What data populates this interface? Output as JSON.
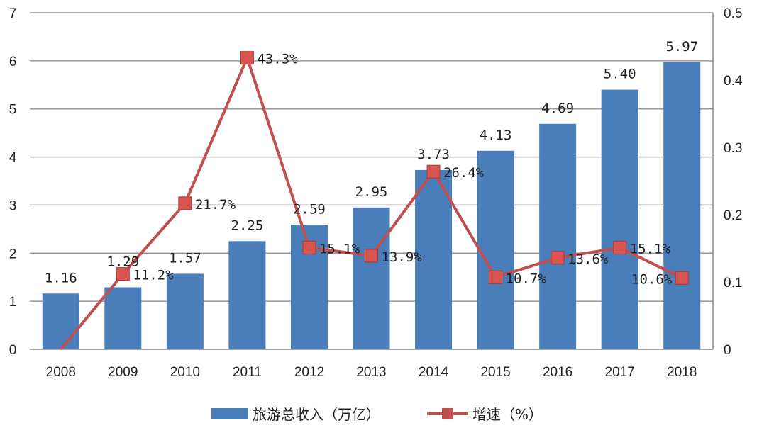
{
  "chart_data": {
    "type": "bar+line",
    "categories": [
      "2008",
      "2009",
      "2010",
      "2011",
      "2012",
      "2013",
      "2014",
      "2015",
      "2016",
      "2017",
      "2018"
    ],
    "series": [
      {
        "name": "旅游总收入（万亿）",
        "type": "bar",
        "axis": "left",
        "color": "#4a7ebb",
        "values": [
          1.16,
          1.29,
          1.57,
          2.25,
          2.59,
          2.95,
          3.73,
          4.13,
          4.69,
          5.4,
          5.97
        ],
        "labels": [
          "1.16",
          "1.29",
          "1.57",
          "2.25",
          "2.59",
          "2.95",
          "3.73",
          "4.13",
          "4.69",
          "5.40",
          "5.97"
        ]
      },
      {
        "name": "增速（%）",
        "type": "line",
        "axis": "right",
        "color": "#c0504d",
        "values": [
          0,
          0.112,
          0.217,
          0.433,
          0.151,
          0.139,
          0.264,
          0.107,
          0.136,
          0.151,
          0.106
        ],
        "labels": [
          "",
          "11.2%",
          "21.7%",
          "43.3%",
          "15.1%",
          "13.9%",
          "26.4%",
          "10.7%",
          "13.6%",
          "15.1%",
          "10.6%"
        ]
      }
    ],
    "ylim_left": [
      0,
      7
    ],
    "yticks_left": [
      "0",
      "1",
      "2",
      "3",
      "4",
      "5",
      "6",
      "7"
    ],
    "ylim_right": [
      0,
      0.5
    ],
    "yticks_right": [
      "0",
      "0.1",
      "0.2",
      "0.3",
      "0.4",
      "0.5"
    ],
    "grid": true,
    "legend_position": "bottom"
  }
}
